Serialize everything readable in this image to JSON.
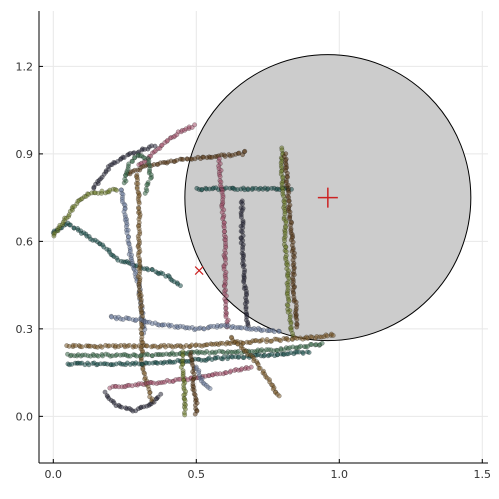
{
  "chart_data": {
    "type": "scatter",
    "title": "",
    "xlabel": "",
    "ylabel": "",
    "xlim": [
      -0.05,
      1.52
    ],
    "ylim": [
      -0.16,
      1.39
    ],
    "xticks": [
      0.0,
      0.5,
      1.0,
      1.5
    ],
    "xtick_labels": [
      "0.0",
      "0.5",
      "1.0",
      "1.5"
    ],
    "yticks": [
      0.0,
      0.3,
      0.6,
      0.9,
      1.2
    ],
    "ytick_labels": [
      "0.0",
      "0.3",
      "0.6",
      "0.9",
      "1.2"
    ],
    "grid": true,
    "legend": "none",
    "colors": {
      "circle_fill": "#cccccc",
      "circle_stroke": "#000000",
      "target_marker": "#cc2222",
      "point_palette": [
        "#1a4f4a",
        "#a0506a",
        "#2a2a3a",
        "#6b7a2a",
        "#5a3a1a",
        "#6a7a9a",
        "#7a5a2a",
        "#3a6a4a"
      ]
    },
    "circle": {
      "center": [
        0.96,
        0.75
      ],
      "radius": 0.5
    },
    "plus_marker": {
      "x": 0.96,
      "y": 0.75
    },
    "x_marker": {
      "x": 0.51,
      "y": 0.5
    },
    "segments": [
      {
        "name": "Pink loops",
        "points": [
          [
            0.0,
            0.63
          ],
          [
            0.05,
            0.66
          ],
          [
            0.12,
            0.62
          ],
          [
            0.18,
            0.58
          ],
          [
            0.22,
            0.54
          ],
          [
            0.28,
            0.52
          ],
          [
            0.35,
            0.5
          ],
          [
            0.4,
            0.48
          ],
          [
            0.45,
            0.44
          ]
        ]
      },
      {
        "name": "Pink arc up",
        "points": [
          [
            0.3,
            0.86
          ],
          [
            0.35,
            0.9
          ],
          [
            0.4,
            0.95
          ],
          [
            0.45,
            0.98
          ],
          [
            0.5,
            1.0
          ]
        ]
      },
      {
        "name": "Pink ring",
        "points": [
          [
            0.14,
            0.78
          ],
          [
            0.2,
            0.86
          ],
          [
            0.27,
            0.9
          ],
          [
            0.33,
            0.92
          ],
          [
            0.36,
            0.93
          ]
        ]
      },
      {
        "name": "Teal left arm",
        "points": [
          [
            0.0,
            0.62
          ],
          [
            0.03,
            0.66
          ],
          [
            0.06,
            0.7
          ],
          [
            0.08,
            0.73
          ],
          [
            0.12,
            0.76
          ],
          [
            0.18,
            0.77
          ],
          [
            0.23,
            0.78
          ]
        ]
      },
      {
        "name": "Teal top band",
        "points": [
          [
            0.26,
            0.83
          ],
          [
            0.33,
            0.86
          ],
          [
            0.45,
            0.88
          ],
          [
            0.55,
            0.89
          ],
          [
            0.66,
            0.9
          ],
          [
            0.68,
            0.91
          ]
        ]
      },
      {
        "name": "Teal left climb",
        "points": [
          [
            0.24,
            0.78
          ],
          [
            0.25,
            0.7
          ],
          [
            0.26,
            0.62
          ],
          [
            0.27,
            0.55
          ],
          [
            0.3,
            0.45
          ],
          [
            0.31,
            0.35
          ],
          [
            0.32,
            0.28
          ]
        ]
      },
      {
        "name": "Dark column",
        "points": [
          [
            0.29,
            0.83
          ],
          [
            0.3,
            0.75
          ],
          [
            0.3,
            0.65
          ],
          [
            0.3,
            0.55
          ],
          [
            0.3,
            0.45
          ],
          [
            0.31,
            0.35
          ],
          [
            0.31,
            0.25
          ],
          [
            0.31,
            0.18
          ],
          [
            0.33,
            0.1
          ],
          [
            0.35,
            0.04
          ]
        ]
      },
      {
        "name": "Navy loop",
        "points": [
          [
            0.25,
            0.8
          ],
          [
            0.26,
            0.86
          ],
          [
            0.3,
            0.9
          ],
          [
            0.33,
            0.88
          ],
          [
            0.34,
            0.82
          ],
          [
            0.32,
            0.76
          ]
        ]
      },
      {
        "name": "Gray horizontal",
        "points": [
          [
            0.5,
            0.78
          ],
          [
            0.6,
            0.78
          ],
          [
            0.7,
            0.78
          ],
          [
            0.8,
            0.78
          ],
          [
            0.84,
            0.78
          ]
        ]
      },
      {
        "name": "Gray dotted 1",
        "points": [
          [
            0.58,
            0.88
          ],
          [
            0.59,
            0.75
          ],
          [
            0.6,
            0.6
          ],
          [
            0.6,
            0.45
          ],
          [
            0.61,
            0.3
          ]
        ]
      },
      {
        "name": "Gray dotted 2",
        "points": [
          [
            0.66,
            0.74
          ],
          [
            0.66,
            0.6
          ],
          [
            0.67,
            0.45
          ],
          [
            0.68,
            0.3
          ]
        ]
      },
      {
        "name": "Brown column",
        "points": [
          [
            0.8,
            0.92
          ],
          [
            0.8,
            0.8
          ],
          [
            0.81,
            0.7
          ],
          [
            0.81,
            0.6
          ],
          [
            0.82,
            0.5
          ],
          [
            0.82,
            0.4
          ],
          [
            0.83,
            0.3
          ],
          [
            0.84,
            0.27
          ]
        ]
      },
      {
        "name": "Olive column",
        "points": [
          [
            0.81,
            0.9
          ],
          [
            0.82,
            0.78
          ],
          [
            0.83,
            0.66
          ],
          [
            0.84,
            0.55
          ],
          [
            0.84,
            0.44
          ],
          [
            0.85,
            0.35
          ],
          [
            0.85,
            0.3
          ]
        ]
      },
      {
        "name": "Mauve band",
        "points": [
          [
            0.2,
            0.34
          ],
          [
            0.3,
            0.33
          ],
          [
            0.4,
            0.31
          ],
          [
            0.5,
            0.3
          ],
          [
            0.6,
            0.31
          ],
          [
            0.7,
            0.3
          ],
          [
            0.8,
            0.29
          ]
        ]
      },
      {
        "name": "Main band 1",
        "points": [
          [
            0.05,
            0.24
          ],
          [
            0.15,
            0.24
          ],
          [
            0.3,
            0.24
          ],
          [
            0.45,
            0.24
          ],
          [
            0.6,
            0.25
          ],
          [
            0.75,
            0.26
          ],
          [
            0.9,
            0.27
          ],
          [
            0.99,
            0.28
          ]
        ]
      },
      {
        "name": "Main band 2",
        "points": [
          [
            0.05,
            0.21
          ],
          [
            0.2,
            0.21
          ],
          [
            0.35,
            0.21
          ],
          [
            0.5,
            0.22
          ],
          [
            0.65,
            0.22
          ],
          [
            0.8,
            0.23
          ],
          [
            0.95,
            0.25
          ]
        ]
      },
      {
        "name": "Main band 3",
        "points": [
          [
            0.05,
            0.18
          ],
          [
            0.15,
            0.18
          ],
          [
            0.3,
            0.18
          ],
          [
            0.45,
            0.19
          ],
          [
            0.6,
            0.2
          ],
          [
            0.75,
            0.21
          ],
          [
            0.9,
            0.22
          ]
        ]
      },
      {
        "name": "Lower band",
        "points": [
          [
            0.2,
            0.1
          ],
          [
            0.3,
            0.11
          ],
          [
            0.4,
            0.12
          ],
          [
            0.5,
            0.13
          ],
          [
            0.6,
            0.15
          ],
          [
            0.7,
            0.17
          ]
        ]
      },
      {
        "name": "Lower loop",
        "points": [
          [
            0.18,
            0.08
          ],
          [
            0.22,
            0.04
          ],
          [
            0.28,
            0.02
          ],
          [
            0.34,
            0.04
          ],
          [
            0.38,
            0.08
          ]
        ]
      },
      {
        "name": "Brown lower column",
        "points": [
          [
            0.45,
            0.22
          ],
          [
            0.45,
            0.16
          ],
          [
            0.46,
            0.1
          ],
          [
            0.46,
            0.05
          ],
          [
            0.46,
            0.0
          ]
        ]
      },
      {
        "name": "Brown lower column 2",
        "points": [
          [
            0.48,
            0.22
          ],
          [
            0.49,
            0.16
          ],
          [
            0.49,
            0.1
          ],
          [
            0.5,
            0.05
          ],
          [
            0.5,
            0.0
          ]
        ]
      },
      {
        "name": "Olive lower",
        "points": [
          [
            0.5,
            0.17
          ],
          [
            0.52,
            0.12
          ],
          [
            0.55,
            0.09
          ]
        ]
      },
      {
        "name": "Dotted diagonal",
        "points": [
          [
            0.62,
            0.27
          ],
          [
            0.7,
            0.2
          ],
          [
            0.75,
            0.13
          ],
          [
            0.79,
            0.06
          ]
        ]
      }
    ]
  }
}
